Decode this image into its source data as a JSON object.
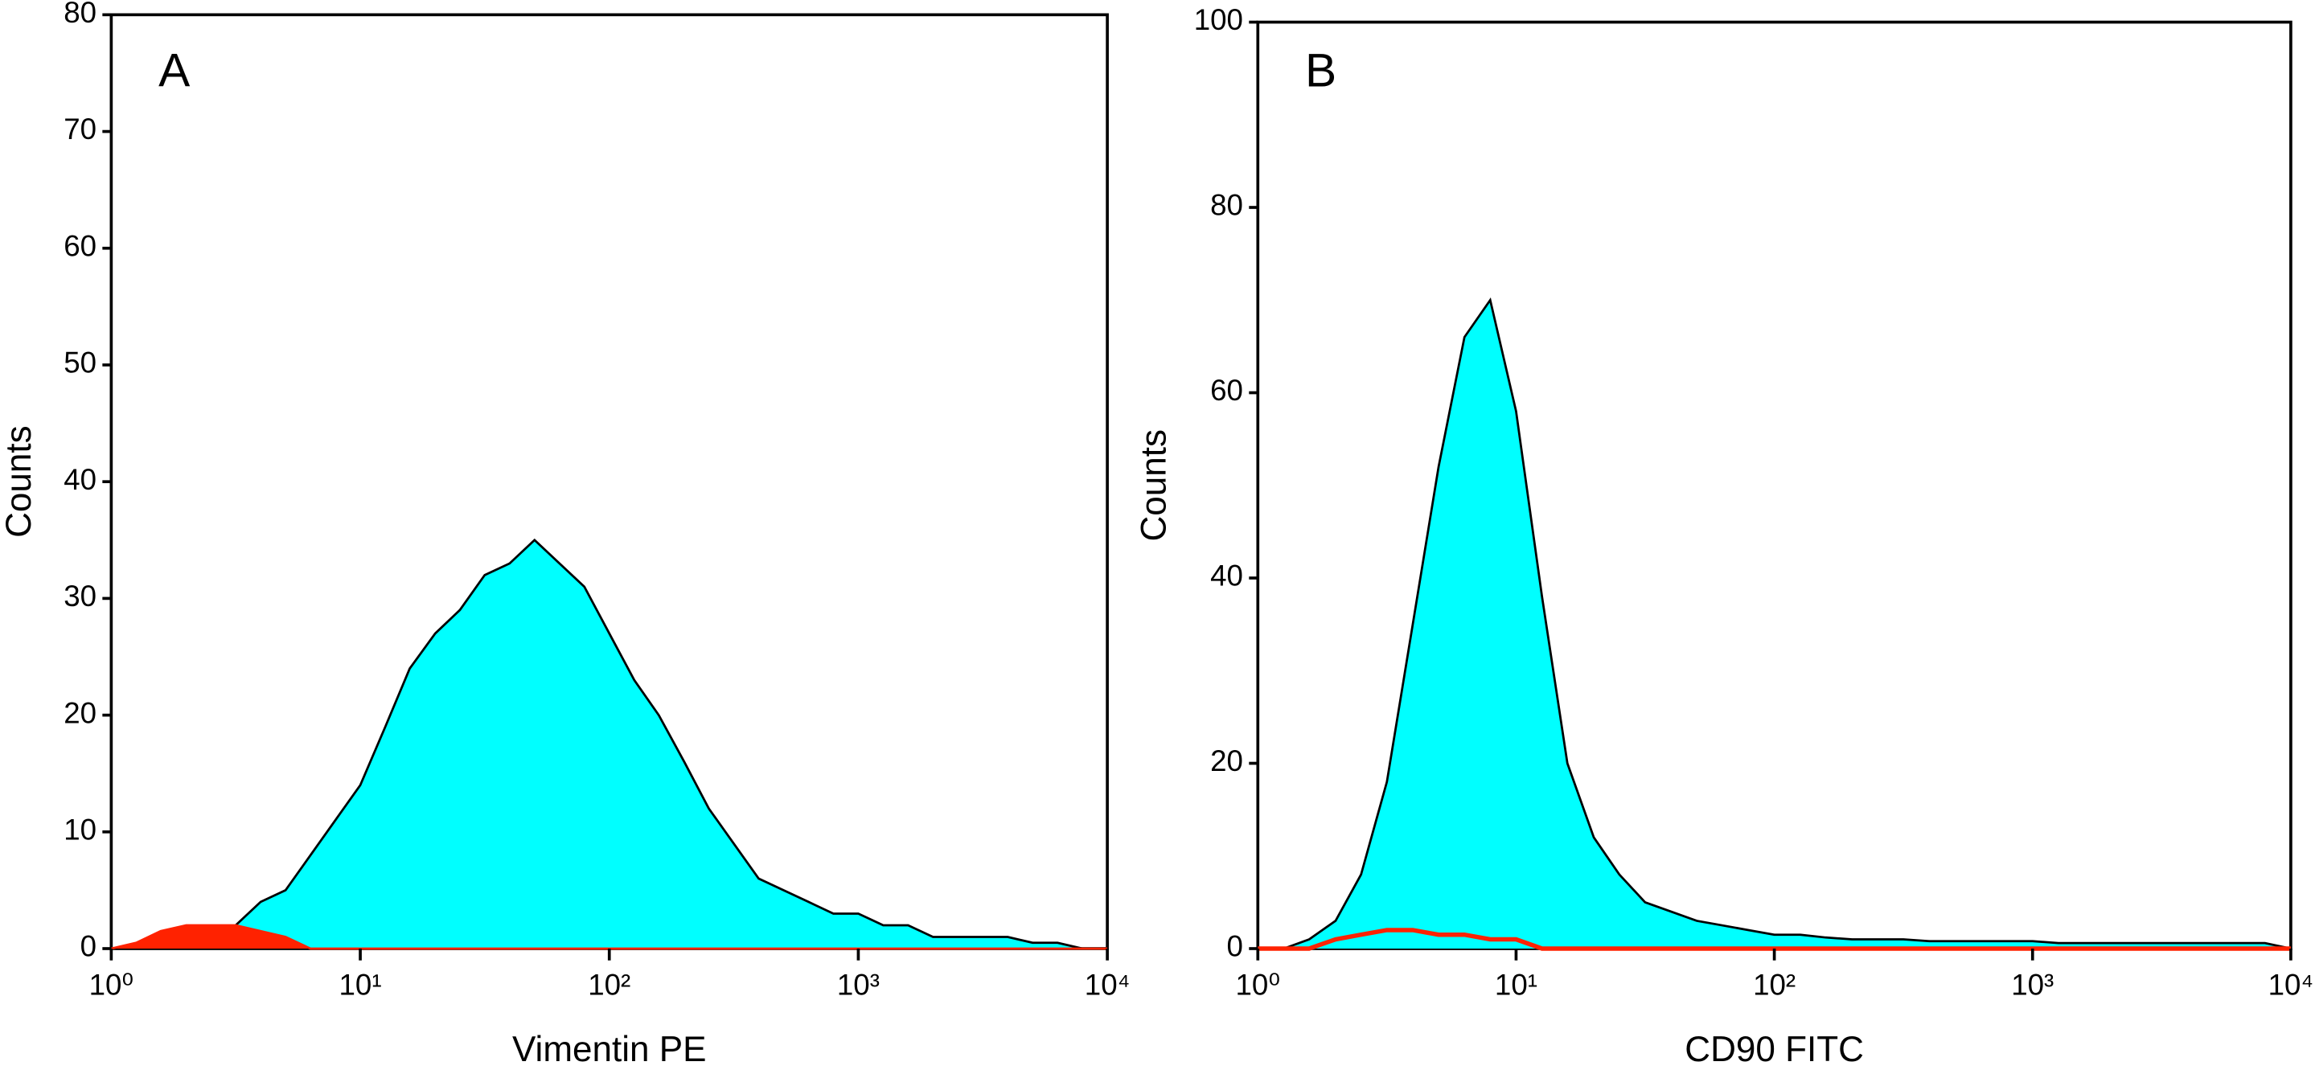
{
  "chart_data": [
    {
      "type": "area",
      "panel_label": "A",
      "x_label": "Vimentin PE",
      "y_label": "Counts",
      "log_x": true,
      "xlim": [
        1,
        10000
      ],
      "xticks": [
        {
          "value": 1,
          "label": "10⁰"
        },
        {
          "value": 10,
          "label": "10¹"
        },
        {
          "value": 100,
          "label": "10²"
        },
        {
          "value": 1000,
          "label": "10³"
        },
        {
          "value": 10000,
          "label": "10⁴"
        }
      ],
      "ylim": [
        0,
        80
      ],
      "yticks": [
        0,
        10,
        20,
        30,
        40,
        50,
        60,
        70,
        80
      ],
      "x": [
        1,
        1.26,
        1.58,
        2,
        2.51,
        3.16,
        3.98,
        5.01,
        6.31,
        7.94,
        10,
        12.6,
        15.8,
        20,
        25.1,
        31.6,
        39.8,
        50.1,
        63.1,
        79.4,
        100,
        126,
        158,
        200,
        251,
        316,
        398,
        501,
        631,
        794,
        1000,
        1259,
        1585,
        1995,
        2512,
        3162,
        3981,
        5012,
        6310,
        7943,
        10000
      ],
      "series": [
        {
          "color": "#00ffff",
          "fill": true,
          "values": [
            null,
            null,
            null,
            null,
            1,
            2,
            4,
            5,
            8,
            11,
            14,
            19,
            24,
            27,
            29,
            32,
            33,
            35,
            33,
            31,
            27,
            23,
            20,
            16,
            12,
            9,
            6,
            5,
            4,
            3,
            3,
            2,
            2,
            1,
            1,
            1,
            1,
            0.5,
            0.5,
            0,
            0
          ]
        },
        {
          "color": "#ff2200",
          "fill": true,
          "values": [
            0,
            0.5,
            1.5,
            2,
            2,
            2,
            1.5,
            1,
            0,
            0,
            0,
            0,
            0,
            0,
            0,
            0,
            0,
            0,
            0,
            0,
            0,
            0,
            0,
            0,
            0,
            0,
            0,
            0,
            0,
            0,
            0,
            0,
            0,
            0,
            0,
            0,
            0,
            0,
            0,
            0,
            0
          ]
        }
      ]
    },
    {
      "type": "area",
      "panel_label": "B",
      "x_label": "CD90 FITC",
      "y_label": "Counts",
      "log_x": true,
      "xlim": [
        1,
        10000
      ],
      "xticks": [
        {
          "value": 1,
          "label": "10⁰"
        },
        {
          "value": 10,
          "label": "10¹"
        },
        {
          "value": 100,
          "label": "10²"
        },
        {
          "value": 1000,
          "label": "10³"
        },
        {
          "value": 10000,
          "label": "10⁴"
        }
      ],
      "ylim": [
        0,
        100
      ],
      "yticks": [
        0,
        20,
        40,
        60,
        80,
        100
      ],
      "x": [
        1,
        1.26,
        1.58,
        2,
        2.51,
        3.16,
        3.98,
        5.01,
        6.31,
        7.94,
        10,
        12.6,
        15.8,
        20,
        25.1,
        31.6,
        39.8,
        50.1,
        63.1,
        79.4,
        100,
        126,
        158,
        200,
        251,
        316,
        398,
        501,
        631,
        794,
        1000,
        1259,
        1585,
        1995,
        2512,
        3162,
        3981,
        5012,
        6310,
        7943,
        10000
      ],
      "series": [
        {
          "color": "#00ffff",
          "fill": true,
          "values": [
            0,
            0,
            1,
            3,
            8,
            18,
            35,
            52,
            66,
            70,
            58,
            38,
            20,
            12,
            8,
            5,
            4,
            3,
            2.5,
            2,
            1.5,
            1.5,
            1.2,
            1,
            1,
            1,
            0.8,
            0.8,
            0.8,
            0.8,
            0.8,
            0.6,
            0.6,
            0.6,
            0.6,
            0.6,
            0.6,
            0.6,
            0.6,
            0.6,
            0
          ]
        },
        {
          "color": "#ff2200",
          "fill": false,
          "values": [
            0,
            0,
            0,
            1,
            1.5,
            2,
            2,
            1.5,
            1.5,
            1,
            1,
            0,
            0,
            0,
            0,
            0,
            0,
            0,
            0,
            0,
            0,
            0,
            0,
            0,
            0,
            0,
            0,
            0,
            0,
            0,
            0,
            0,
            0,
            0,
            0,
            0,
            0,
            0,
            0,
            0,
            0
          ]
        }
      ]
    }
  ]
}
